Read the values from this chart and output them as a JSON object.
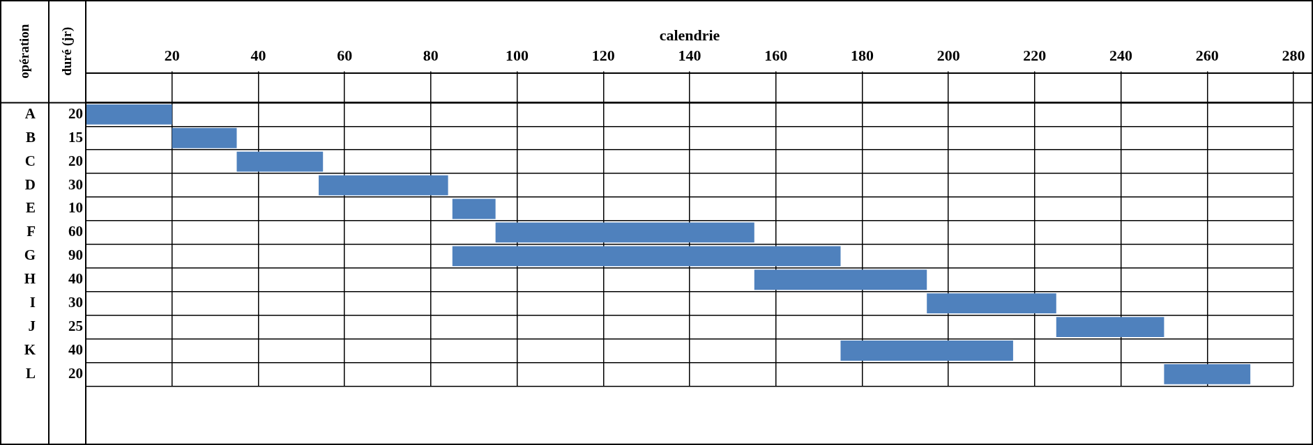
{
  "chart_data": {
    "type": "bar",
    "orientation": "horizontal",
    "title": "calendrie",
    "ylabel": "opération",
    "annotations": [
      "duré (jr)"
    ],
    "categories": [
      "A",
      "B",
      "C",
      "D",
      "E",
      "F",
      "G",
      "H",
      "I",
      "J",
      "K",
      "L"
    ],
    "values": [
      20,
      15,
      20,
      30,
      10,
      60,
      90,
      40,
      30,
      25,
      40,
      20
    ],
    "base": [
      0,
      20,
      35,
      54,
      85,
      95,
      85,
      155,
      195,
      225,
      175,
      250
    ],
    "color": "#4f81bd",
    "data_labels": true,
    "xlim": [
      0,
      280
    ],
    "xticks": [
      20,
      40,
      60,
      80,
      100,
      120,
      140,
      160,
      180,
      200,
      220,
      240,
      260,
      280
    ],
    "grid": true,
    "legend": false
  }
}
